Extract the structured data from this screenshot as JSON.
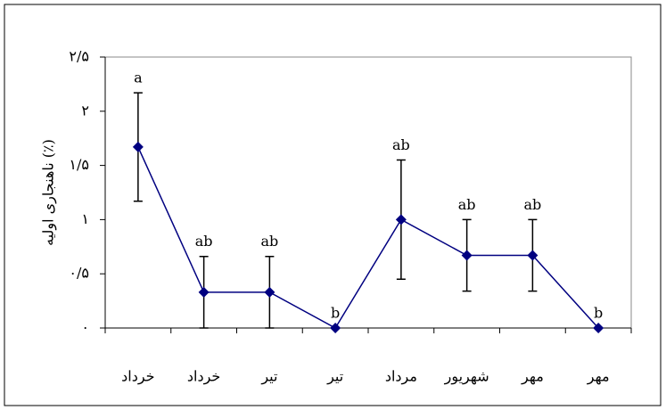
{
  "chart_data": {
    "type": "line",
    "y_label": "ناهنجاری اولیه (٪)",
    "categories": [
      "خرداد",
      "خرداد",
      "تیر",
      "تیر",
      "مرداد",
      "شهریور",
      "مهر",
      "مهر"
    ],
    "series": [
      {
        "name": "ناهنجاری اولیه",
        "color": "#000080",
        "values": [
          1.67,
          0.33,
          0.33,
          0,
          1.0,
          0.67,
          0.67,
          0
        ],
        "errors": [
          0.5,
          0.33,
          0.33,
          0,
          0.55,
          0.33,
          0.33,
          0
        ],
        "letters": [
          "a",
          "ab",
          "ab",
          "b",
          "ab",
          "ab",
          "ab",
          "b"
        ]
      }
    ],
    "ylim": [
      0,
      2.5
    ],
    "yticks": [
      {
        "value": 0,
        "label": "۰"
      },
      {
        "value": 0.5,
        "label": "۰/۵"
      },
      {
        "value": 1,
        "label": "۱"
      },
      {
        "value": 1.5,
        "label": "۱/۵"
      },
      {
        "value": 2,
        "label": "۲"
      },
      {
        "value": 2.5,
        "label": "۲/۵"
      }
    ]
  }
}
